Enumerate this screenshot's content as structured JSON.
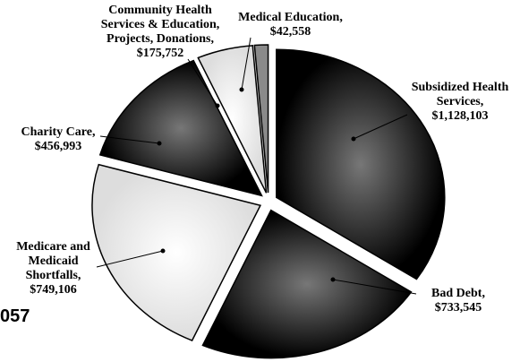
{
  "chart_data": {
    "type": "pie",
    "categories": [
      "Subsidized Health Services,",
      "Bad Debt,",
      "Medicare and Medicaid Shortfalls,",
      "Charity Care,",
      "Community Health Services & Education, Projects, Donations,",
      "Medical Education,"
    ],
    "values": [
      1128103,
      733545,
      749106,
      456993,
      175752,
      42558
    ],
    "value_labels": [
      "$1,128,103",
      "$733,545",
      "$749,106",
      "$456,993",
      "$175,752",
      "$42,558"
    ],
    "colors": [
      "#111111",
      "#161616",
      "#e6e6e6",
      "#141414",
      "#f4f4f4",
      "#8a8a8a"
    ],
    "annotation": "057"
  }
}
